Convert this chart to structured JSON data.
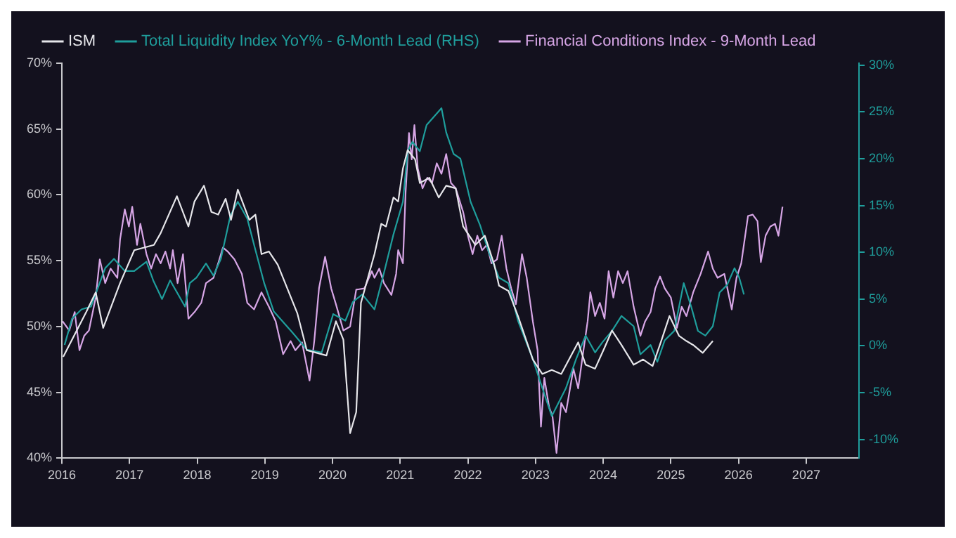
{
  "chart_data": {
    "type": "line",
    "legend": "top",
    "marker": "none",
    "line_style": "solid",
    "grid": false,
    "xlim": [
      2016,
      2027.78
    ],
    "xticks": [
      2016,
      2017,
      2018,
      2019,
      2020,
      2021,
      2022,
      2023,
      2024,
      2025,
      2026,
      2027
    ],
    "ylim": [
      40,
      70
    ],
    "yticks": [
      {
        "value": 40,
        "label": "40%"
      },
      {
        "value": 45,
        "label": "45%"
      },
      {
        "value": 50,
        "label": "50%"
      },
      {
        "value": 55,
        "label": "55%"
      },
      {
        "value": 60,
        "label": "60%"
      },
      {
        "value": 65,
        "label": "65%"
      },
      {
        "value": 70,
        "label": "70%"
      }
    ],
    "y2lim": [
      -12,
      30.2
    ],
    "y2ticks": [
      {
        "value": -10,
        "label": "-10%"
      },
      {
        "value": -5,
        "label": "-5%"
      },
      {
        "value": 0,
        "label": "0%"
      },
      {
        "value": 5,
        "label": "5%"
      },
      {
        "value": 10,
        "label": "10%"
      },
      {
        "value": 15,
        "label": "15%"
      },
      {
        "value": 20,
        "label": "20%"
      },
      {
        "value": 25,
        "label": "25%"
      },
      {
        "value": 30,
        "label": "30%"
      }
    ],
    "series": [
      {
        "name": "ISM",
        "color": "#e6e6ea",
        "x": [
          2016.02,
          2016.36,
          2016.5,
          2016.61,
          2016.86,
          2017.07,
          2017.36,
          2017.46,
          2017.7,
          2017.87,
          2017.96,
          2018.1,
          2018.21,
          2018.31,
          2018.42,
          2018.5,
          2018.6,
          2018.77,
          2018.86,
          2018.95,
          2019.06,
          2019.19,
          2019.48,
          2019.62,
          2019.91,
          2020.05,
          2020.16,
          2020.26,
          2020.35,
          2020.42,
          2020.62,
          2020.72,
          2020.79,
          2020.9,
          2020.97,
          2021.04,
          2021.11,
          2021.22,
          2021.29,
          2021.43,
          2021.57,
          2021.68,
          2021.82,
          2021.93,
          2022.11,
          2022.25,
          2022.39,
          2022.46,
          2022.6,
          2022.74,
          2022.96,
          2023.1,
          2023.24,
          2023.38,
          2023.63,
          2023.74,
          2023.88,
          2024.02,
          2024.13,
          2024.27,
          2024.45,
          2024.59,
          2024.73,
          2024.87,
          2024.98,
          2025.12,
          2025.23,
          2025.33,
          2025.47,
          2025.62
        ],
        "values": [
          47.7,
          51.1,
          52.6,
          49.9,
          53.3,
          55.8,
          56.2,
          57.1,
          59.9,
          57.6,
          59.5,
          60.7,
          58.7,
          58.5,
          59.7,
          58.1,
          60.4,
          58.1,
          58.5,
          55.5,
          55.7,
          54.7,
          51.0,
          48.2,
          47.8,
          50.4,
          49.0,
          41.9,
          43.5,
          51.8,
          55.5,
          57.8,
          57.6,
          59.8,
          59.5,
          62.0,
          63.4,
          62.7,
          60.9,
          61.3,
          59.8,
          60.7,
          60.5,
          57.6,
          56.2,
          56.9,
          54.7,
          53.1,
          52.7,
          50.8,
          47.5,
          46.4,
          46.7,
          46.4,
          48.8,
          47.1,
          46.8,
          48.4,
          49.7,
          48.6,
          47.1,
          47.5,
          47.0,
          49.1,
          50.8,
          49.3,
          48.9,
          48.6,
          48.0,
          48.9
        ]
      },
      {
        "name": "Total Liquidity Index YoY% - 6-Month Lead (RHS)",
        "color": "#1f9e9c",
        "axis": "y2",
        "x": [
          2016.04,
          2016.15,
          2016.29,
          2016.43,
          2016.64,
          2016.77,
          2016.93,
          2017.07,
          2017.25,
          2017.35,
          2017.48,
          2017.6,
          2017.82,
          2017.89,
          2017.99,
          2018.13,
          2018.24,
          2018.35,
          2018.49,
          2018.6,
          2018.74,
          2018.84,
          2018.99,
          2019.13,
          2019.41,
          2019.62,
          2019.84,
          2020.01,
          2020.19,
          2020.3,
          2020.44,
          2020.62,
          2020.76,
          2020.9,
          2021.04,
          2021.11,
          2021.18,
          2021.29,
          2021.39,
          2021.61,
          2021.68,
          2021.79,
          2021.89,
          2022.04,
          2022.18,
          2022.32,
          2022.46,
          2022.6,
          2022.74,
          2022.96,
          2023.1,
          2023.24,
          2023.45,
          2023.6,
          2023.74,
          2023.88,
          2023.99,
          2024.13,
          2024.27,
          2024.45,
          2024.55,
          2024.7,
          2024.8,
          2024.91,
          2025.05,
          2025.19,
          2025.3,
          2025.4,
          2025.51,
          2025.62,
          2025.72,
          2025.83,
          2025.94,
          2026.01,
          2026.08
        ],
        "values": [
          0.1,
          2.9,
          3.9,
          4.2,
          8.3,
          9.3,
          8.0,
          8.0,
          9.0,
          7.0,
          5.0,
          7.0,
          4.2,
          6.7,
          7.3,
          8.8,
          7.5,
          9.3,
          13.9,
          15.4,
          13.6,
          10.8,
          6.7,
          3.7,
          1.4,
          -0.4,
          -0.7,
          3.4,
          2.7,
          4.7,
          5.5,
          3.9,
          7.8,
          11.9,
          15.4,
          20.8,
          21.8,
          20.8,
          23.6,
          25.4,
          22.8,
          20.5,
          20.0,
          15.4,
          12.9,
          9.8,
          7.3,
          6.7,
          2.7,
          -1.4,
          -4.5,
          -7.5,
          -4.5,
          -1.4,
          1.1,
          -0.7,
          0.4,
          1.6,
          3.2,
          2.1,
          -0.9,
          0.1,
          -1.7,
          0.6,
          1.6,
          6.7,
          4.2,
          1.6,
          1.1,
          2.1,
          5.7,
          6.5,
          8.3,
          7.3,
          5.5
        ]
      },
      {
        "name": "Financial Conditions Index - 9-Month Lead",
        "color": "#d7a6e6",
        "x": [
          2016.01,
          2016.11,
          2016.19,
          2016.26,
          2016.33,
          2016.4,
          2016.5,
          2016.56,
          2016.64,
          2016.72,
          2016.82,
          2016.86,
          2016.93,
          2016.99,
          2017.04,
          2017.11,
          2017.16,
          2017.25,
          2017.32,
          2017.39,
          2017.46,
          2017.53,
          2017.6,
          2017.64,
          2017.71,
          2017.79,
          2017.87,
          2017.96,
          2018.06,
          2018.13,
          2018.24,
          2018.31,
          2018.38,
          2018.45,
          2018.55,
          2018.66,
          2018.74,
          2018.84,
          2018.95,
          2019.06,
          2019.16,
          2019.27,
          2019.38,
          2019.45,
          2019.55,
          2019.66,
          2019.73,
          2019.8,
          2019.89,
          2019.98,
          2020.05,
          2020.16,
          2020.26,
          2020.35,
          2020.47,
          2020.58,
          2020.62,
          2020.69,
          2020.76,
          2020.87,
          2020.94,
          2020.97,
          2021.04,
          2021.08,
          2021.13,
          2021.17,
          2021.21,
          2021.26,
          2021.33,
          2021.4,
          2021.47,
          2021.54,
          2021.61,
          2021.68,
          2021.75,
          2021.82,
          2021.93,
          2022.0,
          2022.07,
          2022.14,
          2022.21,
          2022.28,
          2022.35,
          2022.43,
          2022.5,
          2022.57,
          2022.64,
          2022.71,
          2022.8,
          2022.87,
          2022.96,
          2023.03,
          2023.08,
          2023.13,
          2023.2,
          2023.25,
          2023.31,
          2023.38,
          2023.45,
          2023.56,
          2023.63,
          2023.7,
          2023.77,
          2023.81,
          2023.88,
          2023.95,
          2024.02,
          2024.08,
          2024.15,
          2024.22,
          2024.29,
          2024.36,
          2024.45,
          2024.55,
          2024.62,
          2024.7,
          2024.77,
          2024.84,
          2024.91,
          2025.0,
          2025.09,
          2025.16,
          2025.23,
          2025.33,
          2025.44,
          2025.55,
          2025.62,
          2025.69,
          2025.79,
          2025.9,
          2025.97,
          2026.04,
          2026.14,
          2026.21,
          2026.28,
          2026.33,
          2026.4,
          2026.47,
          2026.54,
          2026.59,
          2026.65
        ],
        "values": [
          50.4,
          49.7,
          51.1,
          48.2,
          49.3,
          49.7,
          52.2,
          55.1,
          53.3,
          54.4,
          53.7,
          56.6,
          58.9,
          57.6,
          59.1,
          56.2,
          57.8,
          55.5,
          54.4,
          55.5,
          54.8,
          55.7,
          54.4,
          55.8,
          53.3,
          55.5,
          50.6,
          51.1,
          51.8,
          53.3,
          53.7,
          54.8,
          56.0,
          55.7,
          55.1,
          54.0,
          51.8,
          51.3,
          52.6,
          51.5,
          50.4,
          47.9,
          48.9,
          48.2,
          48.8,
          45.9,
          48.9,
          52.9,
          55.3,
          52.9,
          51.7,
          49.7,
          50.0,
          52.8,
          52.9,
          54.2,
          53.7,
          54.4,
          53.3,
          52.4,
          54.0,
          55.8,
          54.8,
          60.2,
          64.7,
          62.7,
          65.3,
          62.0,
          60.5,
          61.3,
          60.9,
          62.4,
          61.6,
          63.1,
          60.9,
          60.5,
          58.7,
          56.9,
          55.5,
          56.9,
          55.8,
          56.2,
          54.8,
          55.1,
          56.9,
          54.4,
          52.9,
          51.7,
          55.5,
          53.7,
          50.4,
          48.2,
          42.4,
          46.1,
          43.9,
          43.2,
          40.4,
          44.2,
          43.5,
          46.8,
          45.3,
          47.9,
          50.4,
          52.6,
          50.8,
          51.8,
          50.6,
          54.2,
          52.2,
          54.2,
          53.3,
          54.2,
          51.5,
          49.3,
          50.4,
          51.1,
          52.9,
          53.8,
          52.9,
          52.2,
          49.9,
          51.5,
          50.8,
          52.6,
          54.0,
          55.7,
          54.4,
          53.7,
          54.0,
          51.3,
          53.7,
          54.8,
          58.4,
          58.5,
          58.0,
          54.9,
          56.9,
          57.6,
          57.8,
          56.9,
          59.1
        ]
      }
    ]
  }
}
